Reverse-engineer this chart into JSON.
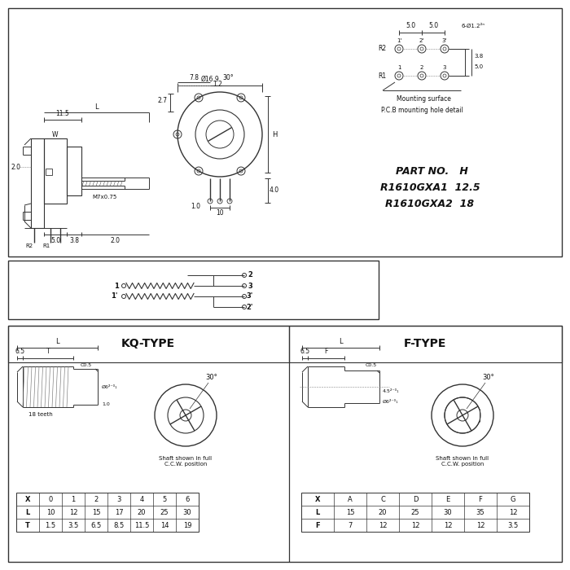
{
  "bg_color": "#ffffff",
  "line_color": "#333333",
  "text_color": "#111111",
  "part_no_label": "PART NO.",
  "part_no_value": "H",
  "part1_label": "R1610GXA1",
  "part1_value": "12.5",
  "part2_label": "R1610GXA2",
  "part2_value": "18",
  "pcb_label": "P.C.B mounting hole detail",
  "mounting_label": "Mounting surface",
  "kq_type_label": "KQ-TYPE",
  "f_type_label": "F-TYPE",
  "shaft_ccw_label": "Shaft shown in full\nC.C.W. position",
  "teeth_label": "18 teeth",
  "c05_label": "C0.5",
  "kq_table_headers": [
    "X",
    "0",
    "1",
    "2",
    "3",
    "4",
    "5",
    "6"
  ],
  "kq_table_L": [
    "L",
    "10",
    "12",
    "15",
    "17",
    "20",
    "25",
    "30"
  ],
  "kq_table_T": [
    "T",
    "1.5",
    "3.5",
    "6.5",
    "8.5",
    "11.5",
    "14",
    "19"
  ],
  "f_table_headers": [
    "X",
    "A",
    "C",
    "D",
    "E",
    "F",
    "G"
  ],
  "f_table_L": [
    "L",
    "15",
    "20",
    "25",
    "30",
    "35",
    "12"
  ],
  "f_table_F": [
    "F",
    "7",
    "12",
    "12",
    "12",
    "12",
    "3.5"
  ],
  "dim_115": "11.5",
  "dim_L": "L",
  "dim_W": "W",
  "dim_20": "2.0",
  "dim_M7": "M7x0.75",
  "dim_R2": "R2",
  "dim_R1": "R1",
  "dim_50": "5.0",
  "dim_38": "3.8",
  "dim_20b": "2.0",
  "dim_169": "Ø16.9",
  "dim_78": "7.8",
  "dim_12": "1.2",
  "dim_27": "2.7",
  "dim_30deg": "30°",
  "dim_H": "H",
  "dim_10w": "10",
  "dim_10h": "1.0",
  "dim_40": "4.0",
  "dim_pcb_50a": "5.0",
  "dim_pcb_50b": "5.0",
  "dim_pcb_phi": "6-Ø1.2²ⁿ",
  "dim_pcb_38": "3.8",
  "dim_pcb_50c": "5.0",
  "kq_65": "6.5",
  "kq_T": "T",
  "kq_L": "L",
  "kq_10": "1.0",
  "kq_phi": "Ø6²⁻⁰₁",
  "kq_30deg": "30°",
  "f_65": "6.5",
  "f_F": "F",
  "f_L": "L",
  "f_45": "4.5²⁻⁰₁",
  "f_phi": "Ø6²⁻⁰₁",
  "f_30deg": "30°",
  "label_2": "2",
  "label_1": "1",
  "label_1p": "1'",
  "label_3": "3",
  "label_3p": "3'",
  "label_2p": "2'"
}
